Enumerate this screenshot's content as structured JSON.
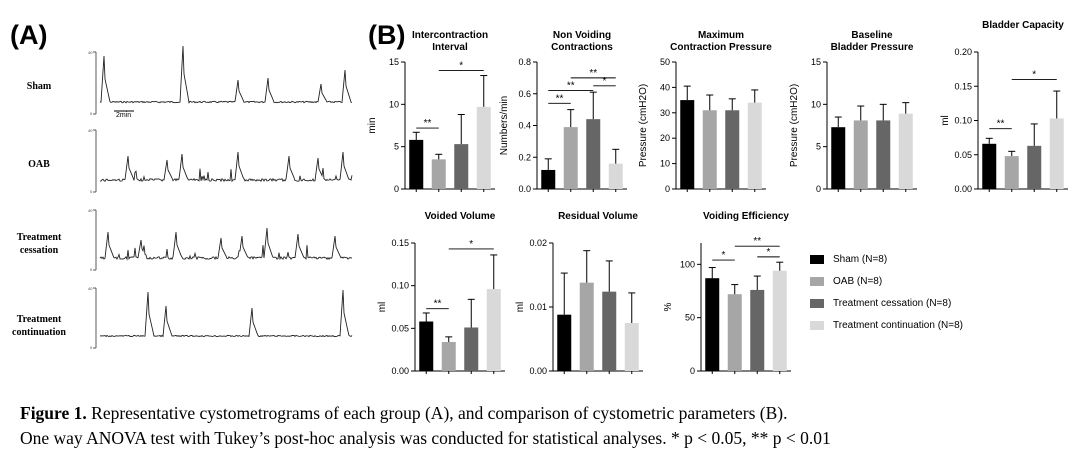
{
  "panels": {
    "a_label": "(A)",
    "b_label": "(B)"
  },
  "traces": [
    {
      "label": "Sham"
    },
    {
      "label": "OAB"
    },
    {
      "label": "Treatment cessation"
    },
    {
      "label": "Treatment continuation"
    }
  ],
  "scale_bar_label": "2min",
  "legend": [
    {
      "label": "Sham (N=8)",
      "color": "#000000"
    },
    {
      "label": "OAB (N=8)",
      "color": "#a6a6a6"
    },
    {
      "label": "Treatment cessation (N=8)",
      "color": "#666666"
    },
    {
      "label": "Treatment continuation (N=8)",
      "color": "#d9d9d9"
    }
  ],
  "caption": {
    "figure_label": "Figure 1.",
    "line1": " Representative cystometrograms of each group (A), and comparison of cystometric parameters (B).",
    "line2": "One way ANOVA test with Tukey’s post-hoc analysis was conducted for statistical analyses. * p < 0.05,  ** p < 0.01"
  },
  "chart_data": [
    {
      "type": "bar",
      "title": "Intercontraction Interval",
      "ylabel": "min",
      "ylim": [
        0,
        15
      ],
      "ticks": [
        "0",
        "5",
        "10",
        "15"
      ],
      "categories": [
        "Sham",
        "OAB",
        "Treatment cessation",
        "Treatment continuation"
      ],
      "values": [
        5.8,
        3.5,
        5.3,
        9.7
      ],
      "errors": [
        0.9,
        0.6,
        3.5,
        3.7
      ],
      "significance": [
        {
          "from": 0,
          "to": 1,
          "label": "**",
          "y": 7.2
        },
        {
          "from": 1,
          "to": 3,
          "label": "*",
          "y": 14.0
        }
      ]
    },
    {
      "type": "bar",
      "title": "Non Voiding Contractions",
      "ylabel": "Numbers/min",
      "ylim": [
        0,
        0.8
      ],
      "ticks": [
        "0.0",
        "0.2",
        "0.4",
        "0.6",
        "0.8"
      ],
      "categories": [
        "Sham",
        "OAB",
        "Treatment cessation",
        "Treatment continuation"
      ],
      "values": [
        0.12,
        0.39,
        0.44,
        0.16
      ],
      "errors": [
        0.07,
        0.11,
        0.17,
        0.09
      ],
      "significance": [
        {
          "from": 0,
          "to": 1,
          "label": "**",
          "y": 0.54
        },
        {
          "from": 0,
          "to": 2,
          "label": "**",
          "y": 0.62
        },
        {
          "from": 2,
          "to": 3,
          "label": "*",
          "y": 0.65
        },
        {
          "from": 1,
          "to": 3,
          "label": "**",
          "y": 0.7
        }
      ]
    },
    {
      "type": "bar",
      "title": "Maximum Contraction Pressure",
      "ylabel": "Pressure (cmH2O)",
      "ylim": [
        0,
        50
      ],
      "ticks": [
        "0",
        "10",
        "20",
        "30",
        "40",
        "50"
      ],
      "categories": [
        "Sham",
        "OAB",
        "Treatment cessation",
        "Treatment continuation"
      ],
      "values": [
        35,
        31,
        31,
        34
      ],
      "errors": [
        5.5,
        6,
        4.5,
        5
      ],
      "significance": []
    },
    {
      "type": "bar",
      "title": "Baseline Bladder Pressure",
      "ylabel": "Pressure (cmH2O)",
      "ylim": [
        0,
        15
      ],
      "ticks": [
        "0",
        "5",
        "10",
        "15"
      ],
      "categories": [
        "Sham",
        "OAB",
        "Treatment cessation",
        "Treatment continuation"
      ],
      "values": [
        7.3,
        8.1,
        8.1,
        8.9
      ],
      "errors": [
        1.2,
        1.7,
        1.9,
        1.3
      ],
      "significance": []
    },
    {
      "type": "bar",
      "title": "Bladder Capacity",
      "ylabel": "ml",
      "ylim": [
        0,
        0.2
      ],
      "ticks": [
        "0.00",
        "0.05",
        "0.10",
        "0.15",
        "0.20"
      ],
      "categories": [
        "Sham",
        "OAB",
        "Treatment cessation",
        "Treatment continuation"
      ],
      "values": [
        0.066,
        0.048,
        0.063,
        0.103
      ],
      "errors": [
        0.008,
        0.007,
        0.032,
        0.04
      ],
      "significance": [
        {
          "from": 0,
          "to": 1,
          "label": "**",
          "y": 0.088
        },
        {
          "from": 1,
          "to": 3,
          "label": "*",
          "y": 0.16
        }
      ]
    },
    {
      "type": "bar",
      "title": "Voided Volume",
      "ylabel": "ml",
      "ylim": [
        0,
        0.15
      ],
      "ticks": [
        "0.00",
        "0.05",
        "0.10",
        "0.15"
      ],
      "categories": [
        "Sham",
        "OAB",
        "Treatment cessation",
        "Treatment continuation"
      ],
      "values": [
        0.058,
        0.034,
        0.051,
        0.096
      ],
      "errors": [
        0.01,
        0.006,
        0.033,
        0.04
      ],
      "significance": [
        {
          "from": 0,
          "to": 1,
          "label": "**",
          "y": 0.073
        },
        {
          "from": 1,
          "to": 3,
          "label": "*",
          "y": 0.143
        }
      ]
    },
    {
      "type": "bar",
      "title": "Residual Volume",
      "ylabel": "ml",
      "ylim": [
        0,
        0.02
      ],
      "ticks": [
        "0.00",
        "0.01",
        "0.02"
      ],
      "categories": [
        "Sham",
        "OAB",
        "Treatment cessation",
        "Treatment continuation"
      ],
      "values": [
        0.0088,
        0.0138,
        0.0124,
        0.0075
      ],
      "errors": [
        0.0065,
        0.005,
        0.0048,
        0.0047
      ],
      "significance": []
    },
    {
      "type": "bar",
      "title": "Voiding Efficiency",
      "ylabel": "%",
      "ylim": [
        0,
        120
      ],
      "ticks": [
        "0",
        "50",
        "100"
      ],
      "categories": [
        "Sham",
        "OAB",
        "Treatment cessation",
        "Treatment continuation"
      ],
      "values": [
        87,
        72,
        76,
        94
      ],
      "errors": [
        10,
        9,
        13,
        8
      ],
      "significance": [
        {
          "from": 0,
          "to": 1,
          "label": "*",
          "y": 104
        },
        {
          "from": 2,
          "to": 3,
          "label": "*",
          "y": 107
        },
        {
          "from": 1,
          "to": 3,
          "label": "**",
          "y": 117
        }
      ]
    }
  ]
}
